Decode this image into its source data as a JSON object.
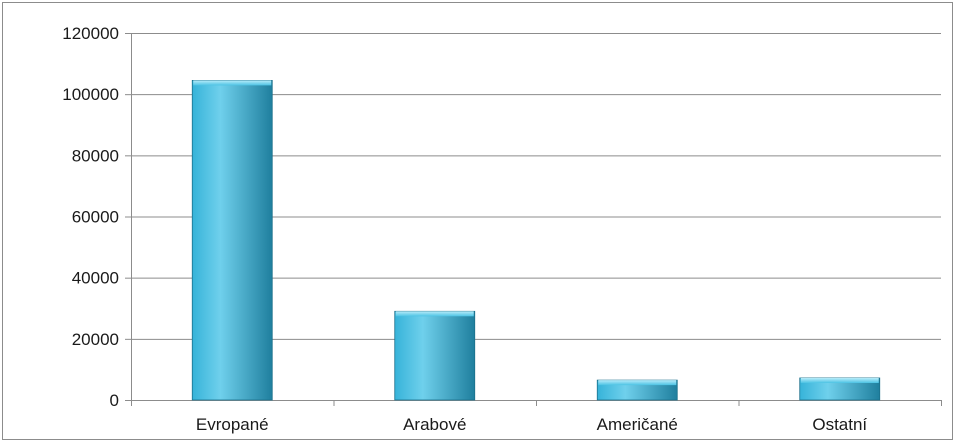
{
  "chart_data": {
    "type": "bar",
    "title": "",
    "xlabel": "",
    "ylabel": "",
    "categories": [
      "Evropané",
      "Arabové",
      "Američané",
      "Ostatní"
    ],
    "values": [
      104500,
      29000,
      6500,
      7200
    ],
    "ylim": [
      0,
      120000
    ],
    "yticks": [
      "0",
      "20000",
      "40000",
      "60000",
      "80000",
      "100000",
      "120000"
    ],
    "ytick_values": [
      0,
      20000,
      40000,
      60000,
      80000,
      100000,
      120000
    ],
    "grid": true,
    "legend": "none",
    "colors": {
      "bar_light": "#6fd0ec",
      "bar_mid": "#36b3d9",
      "bar_dark": "#1f7f9e",
      "grid": "#8c8c8c",
      "axis": "#8c8c8c"
    }
  }
}
